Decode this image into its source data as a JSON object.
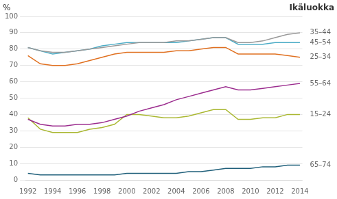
{
  "chart_data": {
    "type": "line",
    "ylabel": "%",
    "y2label": "Ikäluokka",
    "x": [
      1992,
      1993,
      1994,
      1995,
      1996,
      1997,
      1998,
      1999,
      2000,
      2001,
      2002,
      2003,
      2004,
      2005,
      2006,
      2007,
      2008,
      2009,
      2010,
      2011,
      2012,
      2013,
      2014
    ],
    "series": [
      {
        "color": "#999999",
        "values": [
          81,
          79,
          78,
          78,
          79,
          80,
          81,
          82,
          83,
          84,
          84,
          84,
          85,
          85,
          86,
          87,
          87,
          84,
          84,
          85,
          87,
          89,
          90
        ]
      },
      {
        "color": "#4bacc6",
        "values": [
          81,
          79,
          77,
          78,
          79,
          80,
          82,
          83,
          84,
          84,
          84,
          84,
          84,
          85,
          86,
          87,
          87,
          83,
          83,
          83,
          84,
          84,
          84
        ]
      },
      {
        "color": "#e07020",
        "values": [
          76,
          71,
          70,
          70,
          71,
          73,
          75,
          77,
          78,
          78,
          78,
          78,
          79,
          79,
          80,
          81,
          81,
          77,
          77,
          77,
          77,
          76,
          75
        ]
      },
      {
        "color": "#9b2c8e",
        "values": [
          37,
          34,
          33,
          33,
          34,
          34,
          35,
          37,
          39,
          42,
          44,
          46,
          49,
          51,
          53,
          55,
          57,
          55,
          55,
          56,
          57,
          58,
          59
        ]
      },
      {
        "color": "#aab832",
        "values": [
          38,
          31,
          29,
          29,
          29,
          31,
          32,
          34,
          40,
          40,
          39,
          38,
          38,
          39,
          41,
          43,
          43,
          37,
          37,
          38,
          38,
          40,
          40
        ]
      },
      {
        "color": "#1f5f7a",
        "values": [
          4,
          3,
          3,
          3,
          3,
          3,
          3,
          3,
          4,
          4,
          4,
          4,
          4,
          5,
          5,
          6,
          7,
          7,
          7,
          8,
          8,
          9,
          9
        ]
      }
    ],
    "xlim": [
      1991.8,
      2014.2
    ],
    "xticks": [
      1992,
      1994,
      1996,
      1998,
      2000,
      2002,
      2004,
      2006,
      2008,
      2010,
      2012,
      2014
    ],
    "ylim": [
      0,
      100
    ],
    "yticks": [
      0,
      10,
      20,
      30,
      40,
      50,
      60,
      70,
      80,
      90,
      100
    ],
    "y2lim": [
      0,
      100
    ],
    "y2ticks": [
      {
        "value": 90,
        "label": "35–44"
      },
      {
        "value": 84,
        "label": "45–54"
      },
      {
        "value": 75,
        "label": "25–34"
      },
      {
        "value": 59,
        "label": "55–64"
      },
      {
        "value": 40,
        "label": "15–24"
      },
      {
        "value": 9,
        "label": "65–74"
      }
    ],
    "grid": true
  }
}
